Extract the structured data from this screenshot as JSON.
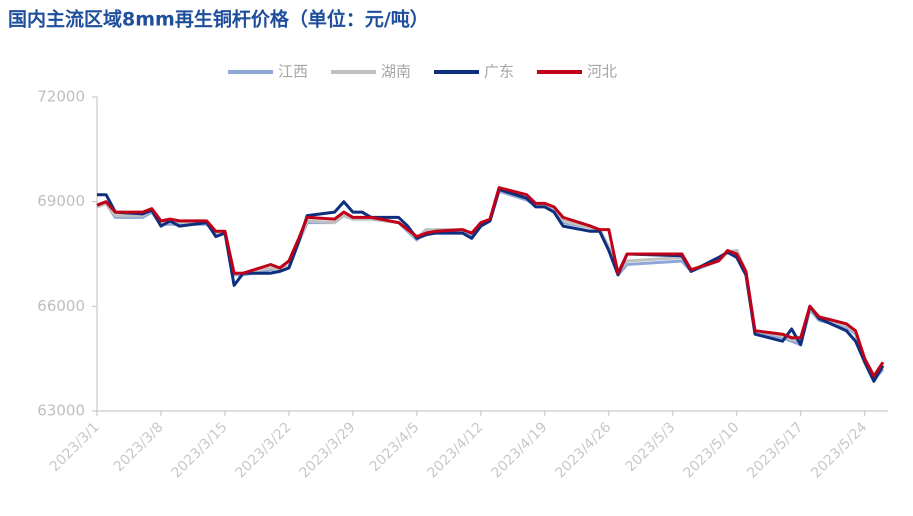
{
  "chart_data": {
    "type": "line",
    "title": "国内主流区域8mm再生铜杆价格（单位：元/吨）",
    "x": [
      "2023/3/1",
      "2023/3/2",
      "2023/3/3",
      "2023/3/6",
      "2023/3/7",
      "2023/3/8",
      "2023/3/9",
      "2023/3/10",
      "2023/3/13",
      "2023/3/14",
      "2023/3/15",
      "2023/3/16",
      "2023/3/17",
      "2023/3/20",
      "2023/3/21",
      "2023/3/22",
      "2023/3/23",
      "2023/3/24",
      "2023/3/27",
      "2023/3/28",
      "2023/3/29",
      "2023/3/30",
      "2023/3/31",
      "2023/4/3",
      "2023/4/4",
      "2023/4/5",
      "2023/4/6",
      "2023/4/7",
      "2023/4/10",
      "2023/4/11",
      "2023/4/12",
      "2023/4/13",
      "2023/4/14",
      "2023/4/17",
      "2023/4/18",
      "2023/4/19",
      "2023/4/20",
      "2023/4/21",
      "2023/4/24",
      "2023/4/25",
      "2023/4/26",
      "2023/4/27",
      "2023/4/28",
      "2023/5/4",
      "2023/5/5",
      "2023/5/8",
      "2023/5/9",
      "2023/5/10",
      "2023/5/11",
      "2023/5/12",
      "2023/5/15",
      "2023/5/16",
      "2023/5/17",
      "2023/5/18",
      "2023/5/19",
      "2023/5/22",
      "2023/5/23",
      "2023/5/24",
      "2023/5/25",
      "2023/5/26"
    ],
    "xlim": [
      "2023/3/1",
      "2023/5/26"
    ],
    "xticks": [
      "2023/3/1",
      "2023/3/8",
      "2023/3/15",
      "2023/3/22",
      "2023/3/29",
      "2023/4/5",
      "2023/4/12",
      "2023/4/19",
      "2023/4/26",
      "2023/5/3",
      "2023/5/10",
      "2023/5/17",
      "2023/5/24"
    ],
    "ylim": [
      63000,
      72000
    ],
    "yticks": [
      63000,
      66000,
      69000,
      72000
    ],
    "legend": "top",
    "series": [
      {
        "name": "江西",
        "color": "#8fa7d6",
        "values": [
          68850,
          68950,
          68550,
          68550,
          68700,
          68350,
          68350,
          68350,
          68350,
          68100,
          68100,
          66900,
          66900,
          67050,
          67000,
          67100,
          67800,
          68400,
          68400,
          68600,
          68500,
          68500,
          68500,
          68400,
          68150,
          67900,
          68200,
          68150,
          68200,
          68050,
          68350,
          68450,
          69300,
          69050,
          68900,
          68850,
          68750,
          68400,
          68250,
          68150,
          67700,
          66900,
          67200,
          67300,
          67000,
          67300,
          67550,
          67600,
          67000,
          65250,
          65100,
          65000,
          64900,
          65900,
          65600,
          65400,
          65200,
          64400,
          63900,
          64200
        ]
      },
      {
        "name": "湖南",
        "color": "#c0c0c0",
        "values": [
          68850,
          68950,
          68600,
          68600,
          68750,
          68400,
          68400,
          68400,
          68400,
          68100,
          68100,
          66950,
          66950,
          67100,
          67050,
          67150,
          67800,
          68450,
          68400,
          68600,
          68500,
          68500,
          68500,
          68400,
          68200,
          67950,
          68200,
          68200,
          68200,
          68100,
          68350,
          68500,
          69350,
          69100,
          68900,
          68900,
          68800,
          68450,
          68250,
          68200,
          67700,
          66950,
          67300,
          67400,
          67050,
          67300,
          67550,
          67600,
          67000,
          65300,
          65150,
          65050,
          65000,
          65950,
          65650,
          65450,
          65250,
          64500,
          64000,
          64300
        ]
      },
      {
        "name": "广东",
        "color": "#0d2f7e",
        "values": [
          69200,
          69200,
          68700,
          68650,
          68750,
          68300,
          68450,
          68300,
          68400,
          68000,
          68100,
          66600,
          66950,
          66950,
          67000,
          67100,
          67800,
          68600,
          68700,
          69000,
          68700,
          68700,
          68550,
          68550,
          68300,
          67950,
          68050,
          68100,
          68100,
          67950,
          68300,
          68450,
          69350,
          69100,
          68850,
          68850,
          68700,
          68300,
          68150,
          68150,
          67600,
          66900,
          67500,
          67450,
          67000,
          67400,
          67550,
          67400,
          66900,
          65200,
          65000,
          65350,
          64900,
          66000,
          65650,
          65300,
          65000,
          64400,
          63850,
          64300
        ]
      },
      {
        "name": "河北",
        "color": "#c00018",
        "values": [
          68900,
          69000,
          68700,
          68700,
          68800,
          68450,
          68500,
          68450,
          68450,
          68150,
          68150,
          66950,
          66950,
          67200,
          67100,
          67300,
          67900,
          68550,
          68500,
          68700,
          68550,
          68550,
          68550,
          68400,
          68200,
          68000,
          68100,
          68150,
          68200,
          68100,
          68400,
          68500,
          69400,
          69200,
          68950,
          68950,
          68850,
          68550,
          68300,
          68200,
          68200,
          66950,
          67500,
          67500,
          67050,
          67300,
          67600,
          67500,
          67000,
          65300,
          65200,
          65100,
          65100,
          66000,
          65700,
          65500,
          65300,
          64500,
          64000,
          64400
        ]
      }
    ]
  }
}
